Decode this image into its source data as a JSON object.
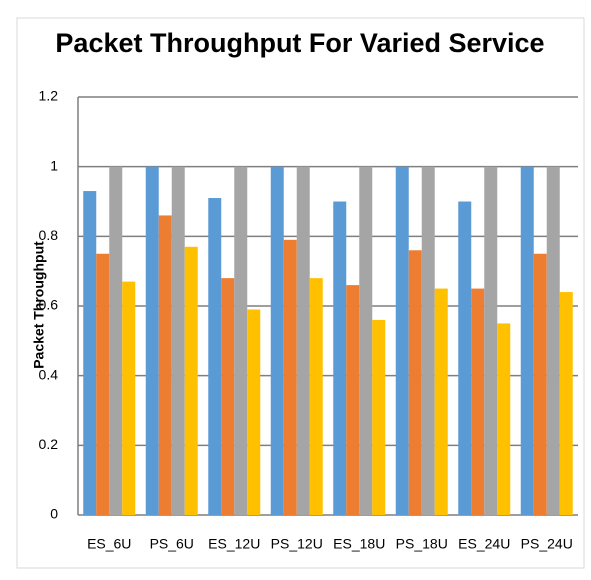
{
  "chart_data": {
    "type": "bar",
    "title": "Packet Throughput For Varied Service",
    "y_label": "Packet Throughput",
    "categories": [
      "ES_6U",
      "PS_6U",
      "ES_12U",
      "PS_12U",
      "ES_18U",
      "PS_18U",
      "ES_24U",
      "PS_24U"
    ],
    "series": [
      {
        "color": "#5b9bd5",
        "values": [
          0.93,
          1,
          0.91,
          1,
          0.9,
          1,
          0.9,
          1
        ]
      },
      {
        "color": "#ed7d31",
        "values": [
          0.75,
          0.86,
          0.68,
          0.79,
          0.66,
          0.76,
          0.65,
          0.75
        ]
      },
      {
        "color": "#a5a5a5",
        "values": [
          1,
          1,
          1,
          1,
          1,
          1,
          1,
          1
        ]
      },
      {
        "color": "#ffc000",
        "values": [
          0.67,
          0.77,
          0.59,
          0.68,
          0.56,
          0.65,
          0.55,
          0.64
        ]
      }
    ],
    "ylim": [
      0,
      1.2
    ],
    "yticks": [
      0,
      0.2,
      0.4,
      0.6,
      0.8,
      1,
      1.2
    ],
    "grid": true
  }
}
